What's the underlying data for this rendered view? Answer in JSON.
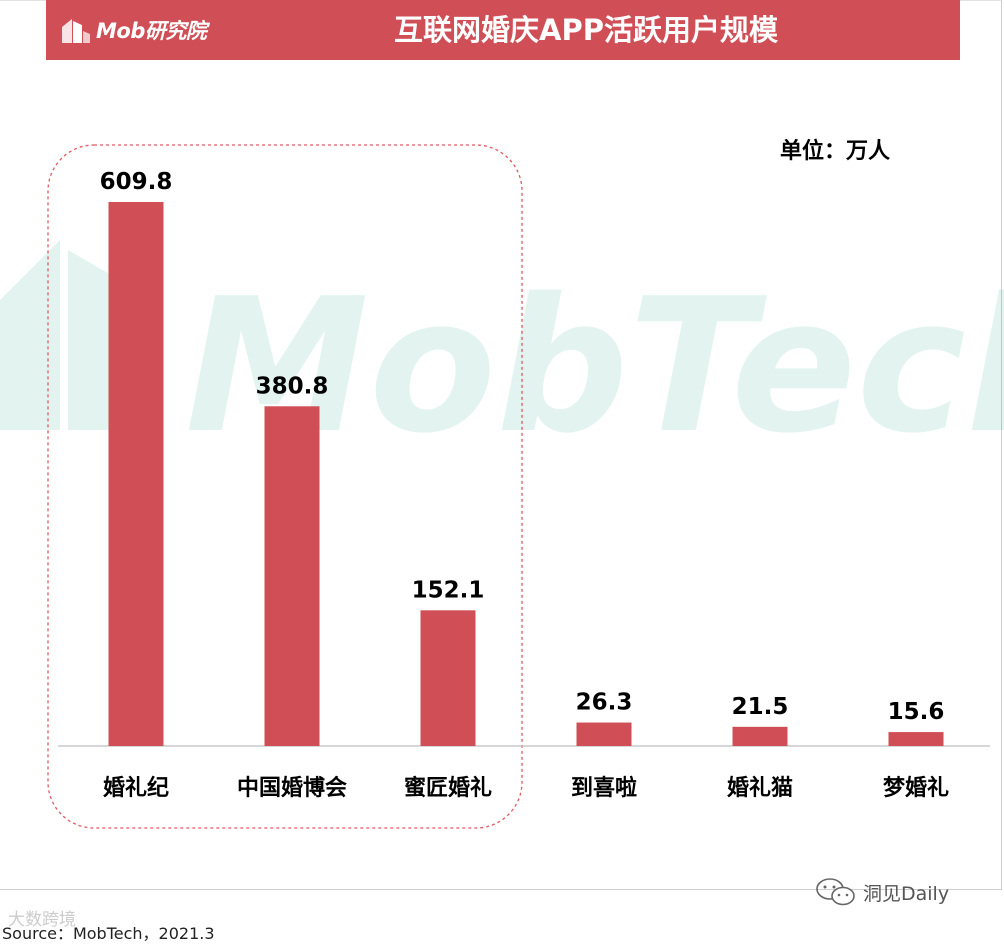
{
  "header": {
    "logo_text": "Mob研究院",
    "title": "互联网婚庆APP活跃用户规模"
  },
  "unit_label": "单位：万人",
  "watermark": {
    "main": "MobTech袤博",
    "corner": "大数跨境",
    "wechat": "洞见Daily"
  },
  "source": "Source：MobTech，2021.3",
  "colors": {
    "accent": "#d04e56",
    "bar": "#d04e56",
    "highlight_border": "#e05a60"
  },
  "chart_data": {
    "type": "bar",
    "title": "互联网婚庆APP活跃用户规模",
    "xlabel": "",
    "ylabel": "单位：万人",
    "categories": [
      "婚礼纪",
      "中国婚博会",
      "蜜匠婚礼",
      "到喜啦",
      "婚礼猫",
      "梦婚礼"
    ],
    "values": [
      609.8,
      380.8,
      152.1,
      26.3,
      21.5,
      15.6
    ],
    "value_labels": [
      "609.8",
      "380.8",
      "152.1",
      "26.3",
      "21.5",
      "15.6"
    ],
    "ylim": [
      0,
      609.8
    ],
    "grid": false,
    "highlight_group": [
      "婚礼纪",
      "中国婚博会",
      "蜜匠婚礼"
    ]
  }
}
